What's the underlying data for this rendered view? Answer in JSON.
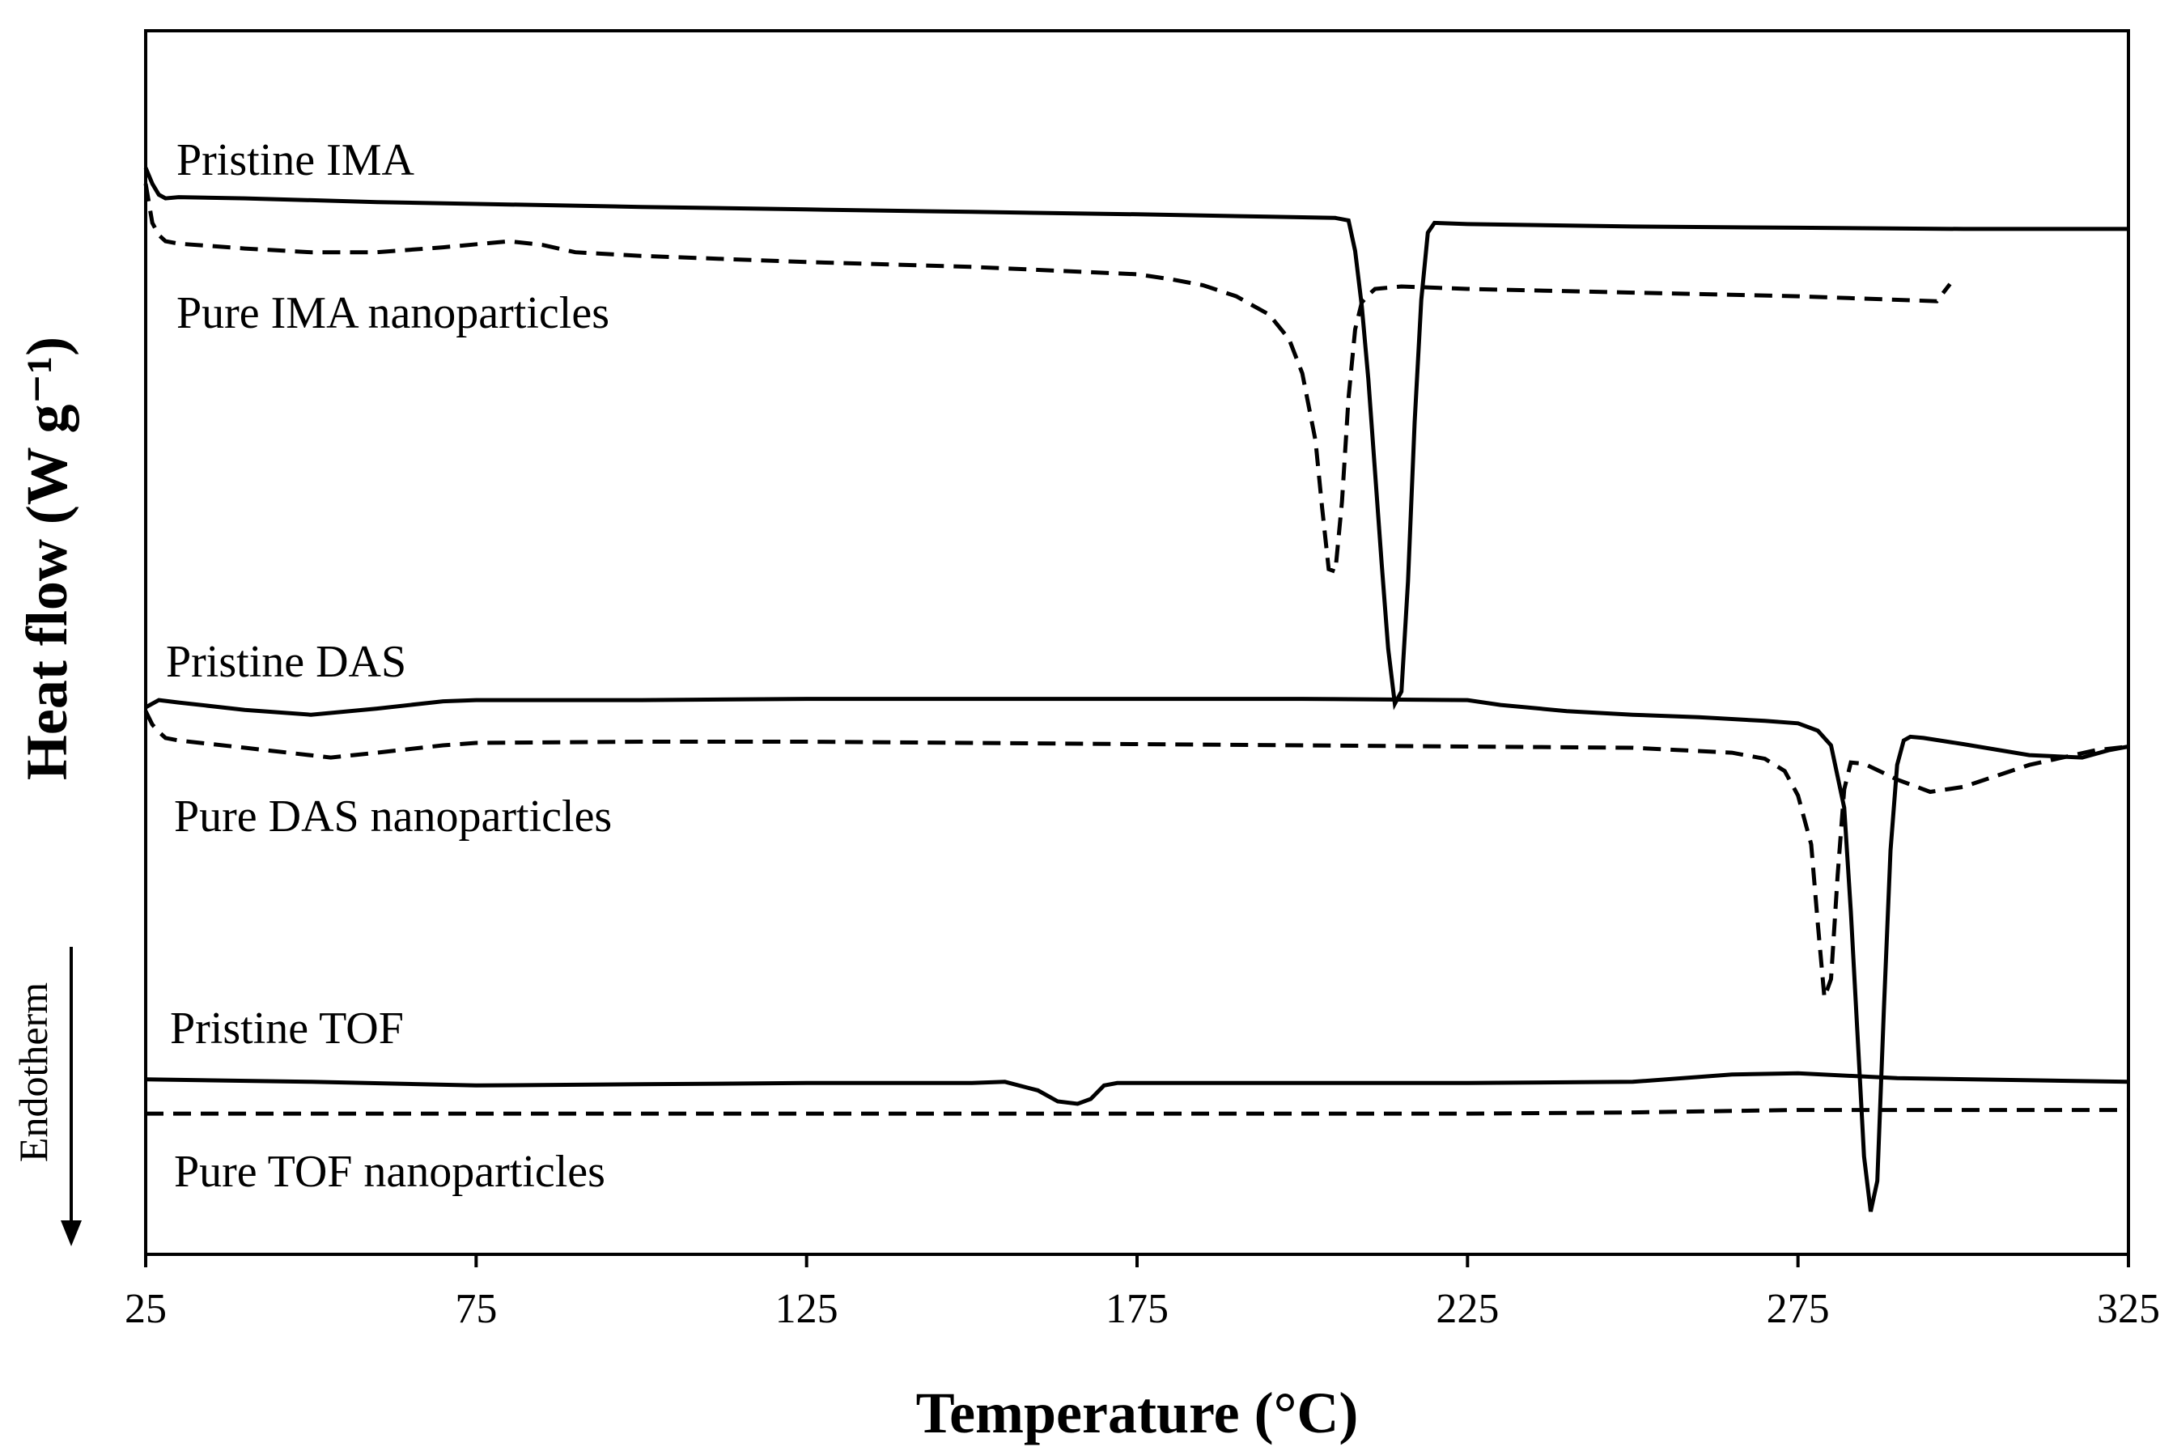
{
  "chart_data": {
    "type": "line",
    "title": "",
    "xlabel": "Temperature (°C)",
    "ylabel": "Heat flow (W g⁻¹)",
    "xlim": [
      25,
      325
    ],
    "ylim": [
      0,
      100
    ],
    "xticks": [
      25,
      75,
      125,
      175,
      225,
      275,
      325
    ],
    "xtick_labels": [
      "25",
      "75",
      "125",
      "175",
      "225",
      "275",
      "325"
    ],
    "grid": false,
    "y_tick_labels_shown": false,
    "annotation": "Endotherm",
    "series": [
      {
        "name": "Pristine IMA",
        "label": "Pristine IMA",
        "style": "solid",
        "x": [
          25,
          26,
          27,
          28,
          30,
          40,
          60,
          80,
          100,
          125,
          150,
          175,
          195,
          205,
          207,
          208,
          209,
          210,
          211,
          212,
          213,
          214,
          215,
          216,
          217,
          218,
          219,
          220,
          225,
          250,
          275,
          300,
          325
        ],
        "y": [
          88.8,
          87.5,
          86.6,
          86.3,
          86.4,
          86.3,
          86.0,
          85.8,
          85.6,
          85.4,
          85.2,
          85.0,
          84.8,
          84.7,
          84.5,
          82.0,
          77.5,
          71.5,
          64.0,
          56.5,
          49.5,
          45.0,
          46.0,
          55.0,
          68.0,
          78.0,
          83.5,
          84.3,
          84.2,
          84.0,
          83.9,
          83.8,
          83.8
        ]
      },
      {
        "name": "Pure IMA nanoparticles",
        "label": "Pure IMA nanoparticles",
        "style": "dashed",
        "x": [
          25,
          26,
          27,
          28,
          30,
          40,
          50,
          60,
          70,
          80,
          85,
          90,
          100,
          125,
          150,
          175,
          180,
          185,
          190,
          195,
          198,
          200,
          202,
          203,
          204,
          205,
          206,
          207,
          208,
          209,
          210,
          211,
          215,
          225,
          250,
          275,
          296,
          298
        ],
        "y": [
          87.5,
          84.3,
          83.3,
          82.8,
          82.6,
          82.2,
          81.9,
          81.9,
          82.3,
          82.8,
          82.5,
          81.9,
          81.6,
          81.1,
          80.7,
          80.1,
          79.7,
          79.2,
          78.3,
          76.8,
          74.8,
          72.0,
          66.5,
          61.0,
          56.0,
          55.8,
          61.5,
          70.0,
          75.6,
          77.8,
          78.4,
          78.9,
          79.1,
          78.9,
          78.6,
          78.3,
          77.9,
          79.3
        ]
      },
      {
        "name": "Pristine DAS",
        "label": "Pristine DAS",
        "style": "solid",
        "x": [
          25,
          27,
          30,
          40,
          50,
          60,
          70,
          75,
          100,
          125,
          150,
          175,
          200,
          225,
          230,
          240,
          250,
          260,
          270,
          275,
          278,
          280,
          282,
          283,
          284,
          285,
          286,
          287,
          288,
          289,
          290,
          291,
          292,
          294,
          300,
          310,
          318,
          322,
          325
        ],
        "y": [
          44.7,
          45.3,
          45.1,
          44.5,
          44.1,
          44.6,
          45.2,
          45.3,
          45.3,
          45.4,
          45.4,
          45.4,
          45.4,
          45.3,
          44.9,
          44.4,
          44.1,
          43.9,
          43.6,
          43.4,
          42.8,
          41.6,
          36.5,
          28.0,
          18.0,
          8.0,
          3.5,
          6.0,
          20.0,
          33.0,
          40.0,
          42.0,
          42.3,
          42.2,
          41.7,
          40.8,
          40.6,
          41.2,
          41.5
        ]
      },
      {
        "name": "Pure DAS nanoparticles",
        "label": "Pure DAS nanoparticles",
        "style": "dashed",
        "x": [
          25,
          26,
          27,
          28,
          30,
          40,
          53,
          60,
          70,
          75,
          100,
          125,
          150,
          175,
          200,
          225,
          250,
          265,
          270,
          273,
          275,
          277,
          278,
          279,
          280,
          281,
          282,
          283,
          285,
          290,
          295,
          300,
          310,
          320,
          325
        ],
        "y": [
          44.4,
          43.3,
          42.7,
          42.2,
          42.0,
          41.4,
          40.6,
          41.0,
          41.6,
          41.8,
          41.9,
          41.9,
          41.8,
          41.7,
          41.6,
          41.5,
          41.4,
          41.0,
          40.5,
          39.5,
          37.5,
          33.5,
          27.0,
          21.0,
          22.5,
          31.0,
          38.0,
          40.2,
          40.1,
          38.8,
          37.8,
          38.2,
          40.0,
          41.2,
          41.5
        ]
      },
      {
        "name": "Pristine TOF",
        "label": "Pristine TOF",
        "style": "solid",
        "x": [
          25,
          50,
          75,
          100,
          125,
          150,
          155,
          160,
          163,
          166,
          168,
          170,
          172,
          175,
          200,
          225,
          250,
          265,
          275,
          290,
          325
        ],
        "y": [
          14.3,
          14.1,
          13.8,
          13.9,
          14.0,
          14.0,
          14.1,
          13.4,
          12.5,
          12.3,
          12.7,
          13.8,
          14.0,
          14.0,
          14.0,
          14.0,
          14.1,
          14.7,
          14.8,
          14.4,
          14.1
        ]
      },
      {
        "name": "Pure TOF nanoparticles",
        "label": "Pure TOF nanoparticles",
        "style": "dashed",
        "x": [
          25,
          75,
          125,
          175,
          225,
          250,
          275,
          300,
          325
        ],
        "y": [
          11.5,
          11.5,
          11.5,
          11.5,
          11.5,
          11.6,
          11.8,
          11.8,
          11.8
        ]
      }
    ]
  }
}
